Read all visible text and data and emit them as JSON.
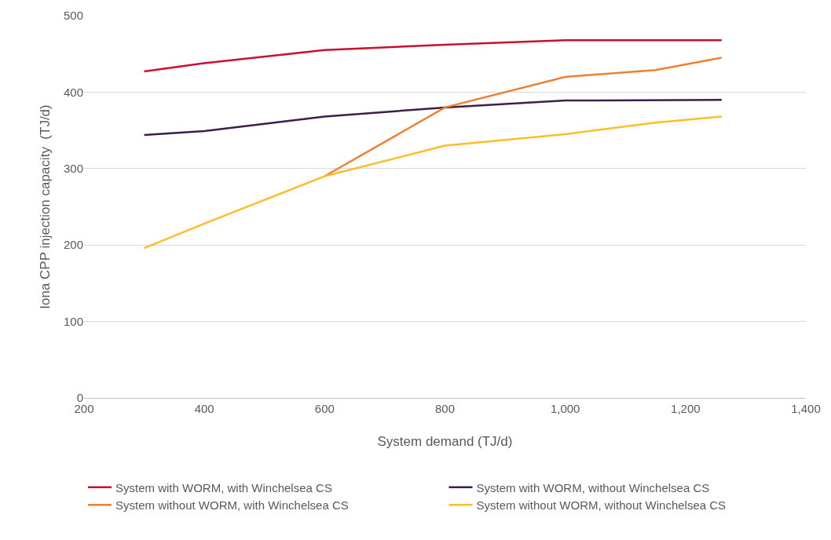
{
  "chart_data": {
    "type": "line",
    "xlabel": "System demand (TJ/d)",
    "ylabel": "Iona CPP injection capacity  (TJ/d)",
    "xlim": [
      200,
      1400
    ],
    "xticks": [
      200,
      400,
      600,
      800,
      {
        "value": 1000,
        "label": "1,000"
      },
      {
        "value": 1200,
        "label": "1,200"
      },
      {
        "value": 1400,
        "label": "1,400"
      }
    ],
    "ylim": [
      0,
      500
    ],
    "yticks": [
      0,
      100,
      200,
      300,
      400,
      500
    ],
    "grid": "y",
    "legend": "bottom",
    "marker": "none",
    "line_style": "solid",
    "series": [
      {
        "name": "System with WORM, with Winchelsea CS",
        "color": "#c8102e",
        "x": [
          300,
          400,
          600,
          800,
          1000,
          1260
        ],
        "values": [
          427,
          438,
          455,
          462,
          468,
          468
        ]
      },
      {
        "name": "System with WORM, without Winchelsea CS",
        "color": "#3b1f4a",
        "x": [
          300,
          400,
          600,
          800,
          1000,
          1260
        ],
        "values": [
          344,
          349,
          368,
          380,
          389,
          390
        ]
      },
      {
        "name": "System without WORM, with Winchelsea CS",
        "color": "#f07f32",
        "x": [
          600,
          800,
          1000,
          1150,
          1260
        ],
        "values": [
          290,
          380,
          420,
          429,
          445
        ]
      },
      {
        "name": "System without WORM, without Winchelsea CS",
        "color": "#fcbf2a",
        "x": [
          300,
          400,
          600,
          800,
          1000,
          1150,
          1260
        ],
        "values": [
          196,
          228,
          290,
          330,
          345,
          360,
          368
        ]
      }
    ]
  }
}
